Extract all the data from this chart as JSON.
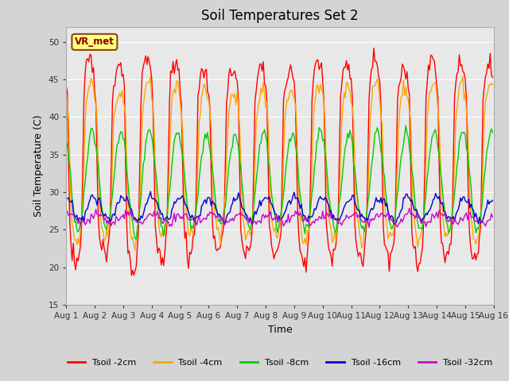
{
  "title": "Soil Temperatures Set 2",
  "xlabel": "Time",
  "ylabel": "Soil Temperature (C)",
  "ylim": [
    15,
    52
  ],
  "xlim": [
    0,
    360
  ],
  "yticks": [
    15,
    20,
    25,
    30,
    35,
    40,
    45,
    50
  ],
  "xtick_labels": [
    "Aug 1",
    "Aug 2",
    "Aug 3",
    "Aug 4",
    "Aug 5",
    "Aug 6",
    "Aug 7",
    "Aug 8",
    "Aug 9",
    "Aug 10",
    "Aug 11",
    "Aug 12",
    "Aug 13",
    "Aug 14",
    "Aug 15",
    "Aug 16"
  ],
  "xtick_positions": [
    0,
    24,
    48,
    72,
    96,
    120,
    144,
    168,
    192,
    216,
    240,
    264,
    288,
    312,
    336,
    360
  ],
  "series": [
    {
      "label": "Tsoil -2cm",
      "color": "#ff0000",
      "amplitude": 14.0,
      "mean": 34.0,
      "peak_hour": 14,
      "sharpness": 3.0
    },
    {
      "label": "Tsoil -4cm",
      "color": "#ffa500",
      "amplitude": 11.0,
      "mean": 34.0,
      "peak_hour": 15,
      "sharpness": 2.0
    },
    {
      "label": "Tsoil -8cm",
      "color": "#00cc00",
      "amplitude": 7.0,
      "mean": 31.5,
      "peak_hour": 16,
      "sharpness": 1.0
    },
    {
      "label": "Tsoil -16cm",
      "color": "#0000cc",
      "amplitude": 1.6,
      "mean": 27.8,
      "peak_hour": 18,
      "sharpness": 1.0
    },
    {
      "label": "Tsoil -32cm",
      "color": "#cc00cc",
      "amplitude": 0.6,
      "mean": 26.5,
      "peak_hour": 20,
      "sharpness": 1.0
    }
  ],
  "day_peak_modifiers": [
    0.9,
    0.7,
    1.0,
    0.8,
    0.6,
    0.5,
    0.7,
    0.65,
    0.85,
    0.75,
    0.85,
    0.75,
    0.85,
    0.8,
    0.85
  ],
  "bg_color": "#d4d4d4",
  "plot_bg_color": "#e8e8e8",
  "grid_color": "#ffffff",
  "annotation_text": "VR_met"
}
